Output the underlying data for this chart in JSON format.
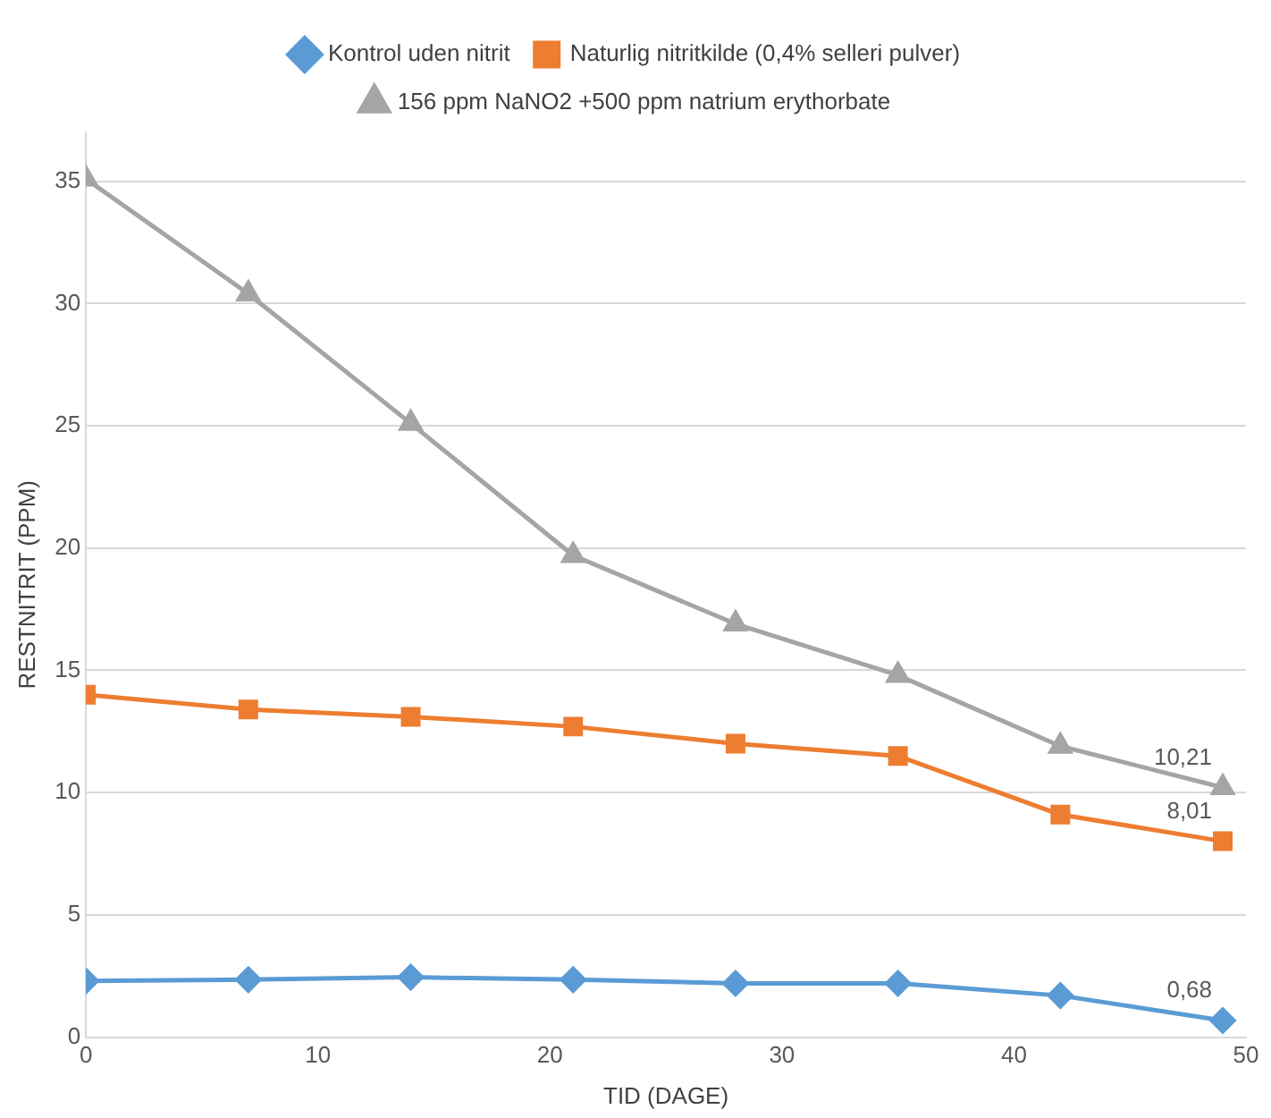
{
  "chart_data": {
    "type": "line",
    "xlabel": "TID (DAGE)",
    "ylabel": "RESTNITRIT (PPM)",
    "x": [
      0,
      7,
      14,
      21,
      28,
      35,
      42,
      49
    ],
    "series": [
      {
        "name": "Kontrol uden nitrit",
        "color": "#5b9bd5",
        "marker": "diamond",
        "values": [
          2.3,
          2.35,
          2.45,
          2.35,
          2.2,
          2.2,
          1.7,
          0.68
        ],
        "value_labels": [
          null,
          null,
          null,
          null,
          null,
          null,
          null,
          "0,68"
        ]
      },
      {
        "name": "Naturlig nitritkilde (0,4% selleri pulver)",
        "color": "#ed7d31",
        "marker": "square",
        "values": [
          14.0,
          13.4,
          13.1,
          12.7,
          12.0,
          11.5,
          9.1,
          8.01
        ],
        "value_labels": [
          null,
          null,
          null,
          null,
          null,
          null,
          null,
          "8,01"
        ]
      },
      {
        "name": "156 ppm NaNO2 +500 ppm natrium erythorbate",
        "color": "#a5a5a5",
        "marker": "triangle",
        "values": [
          35.1,
          30.4,
          25.1,
          19.7,
          16.9,
          14.8,
          11.9,
          10.21
        ],
        "value_labels": [
          null,
          null,
          null,
          null,
          null,
          null,
          null,
          "10,21"
        ]
      }
    ],
    "xlim": [
      0,
      50
    ],
    "xticks": [
      0,
      10,
      20,
      30,
      40,
      50
    ],
    "ylim": [
      0,
      37
    ],
    "yticks": [
      0,
      5,
      10,
      15,
      20,
      25,
      30,
      35
    ],
    "grid": "y",
    "legend": "top",
    "line_style": "solid"
  }
}
